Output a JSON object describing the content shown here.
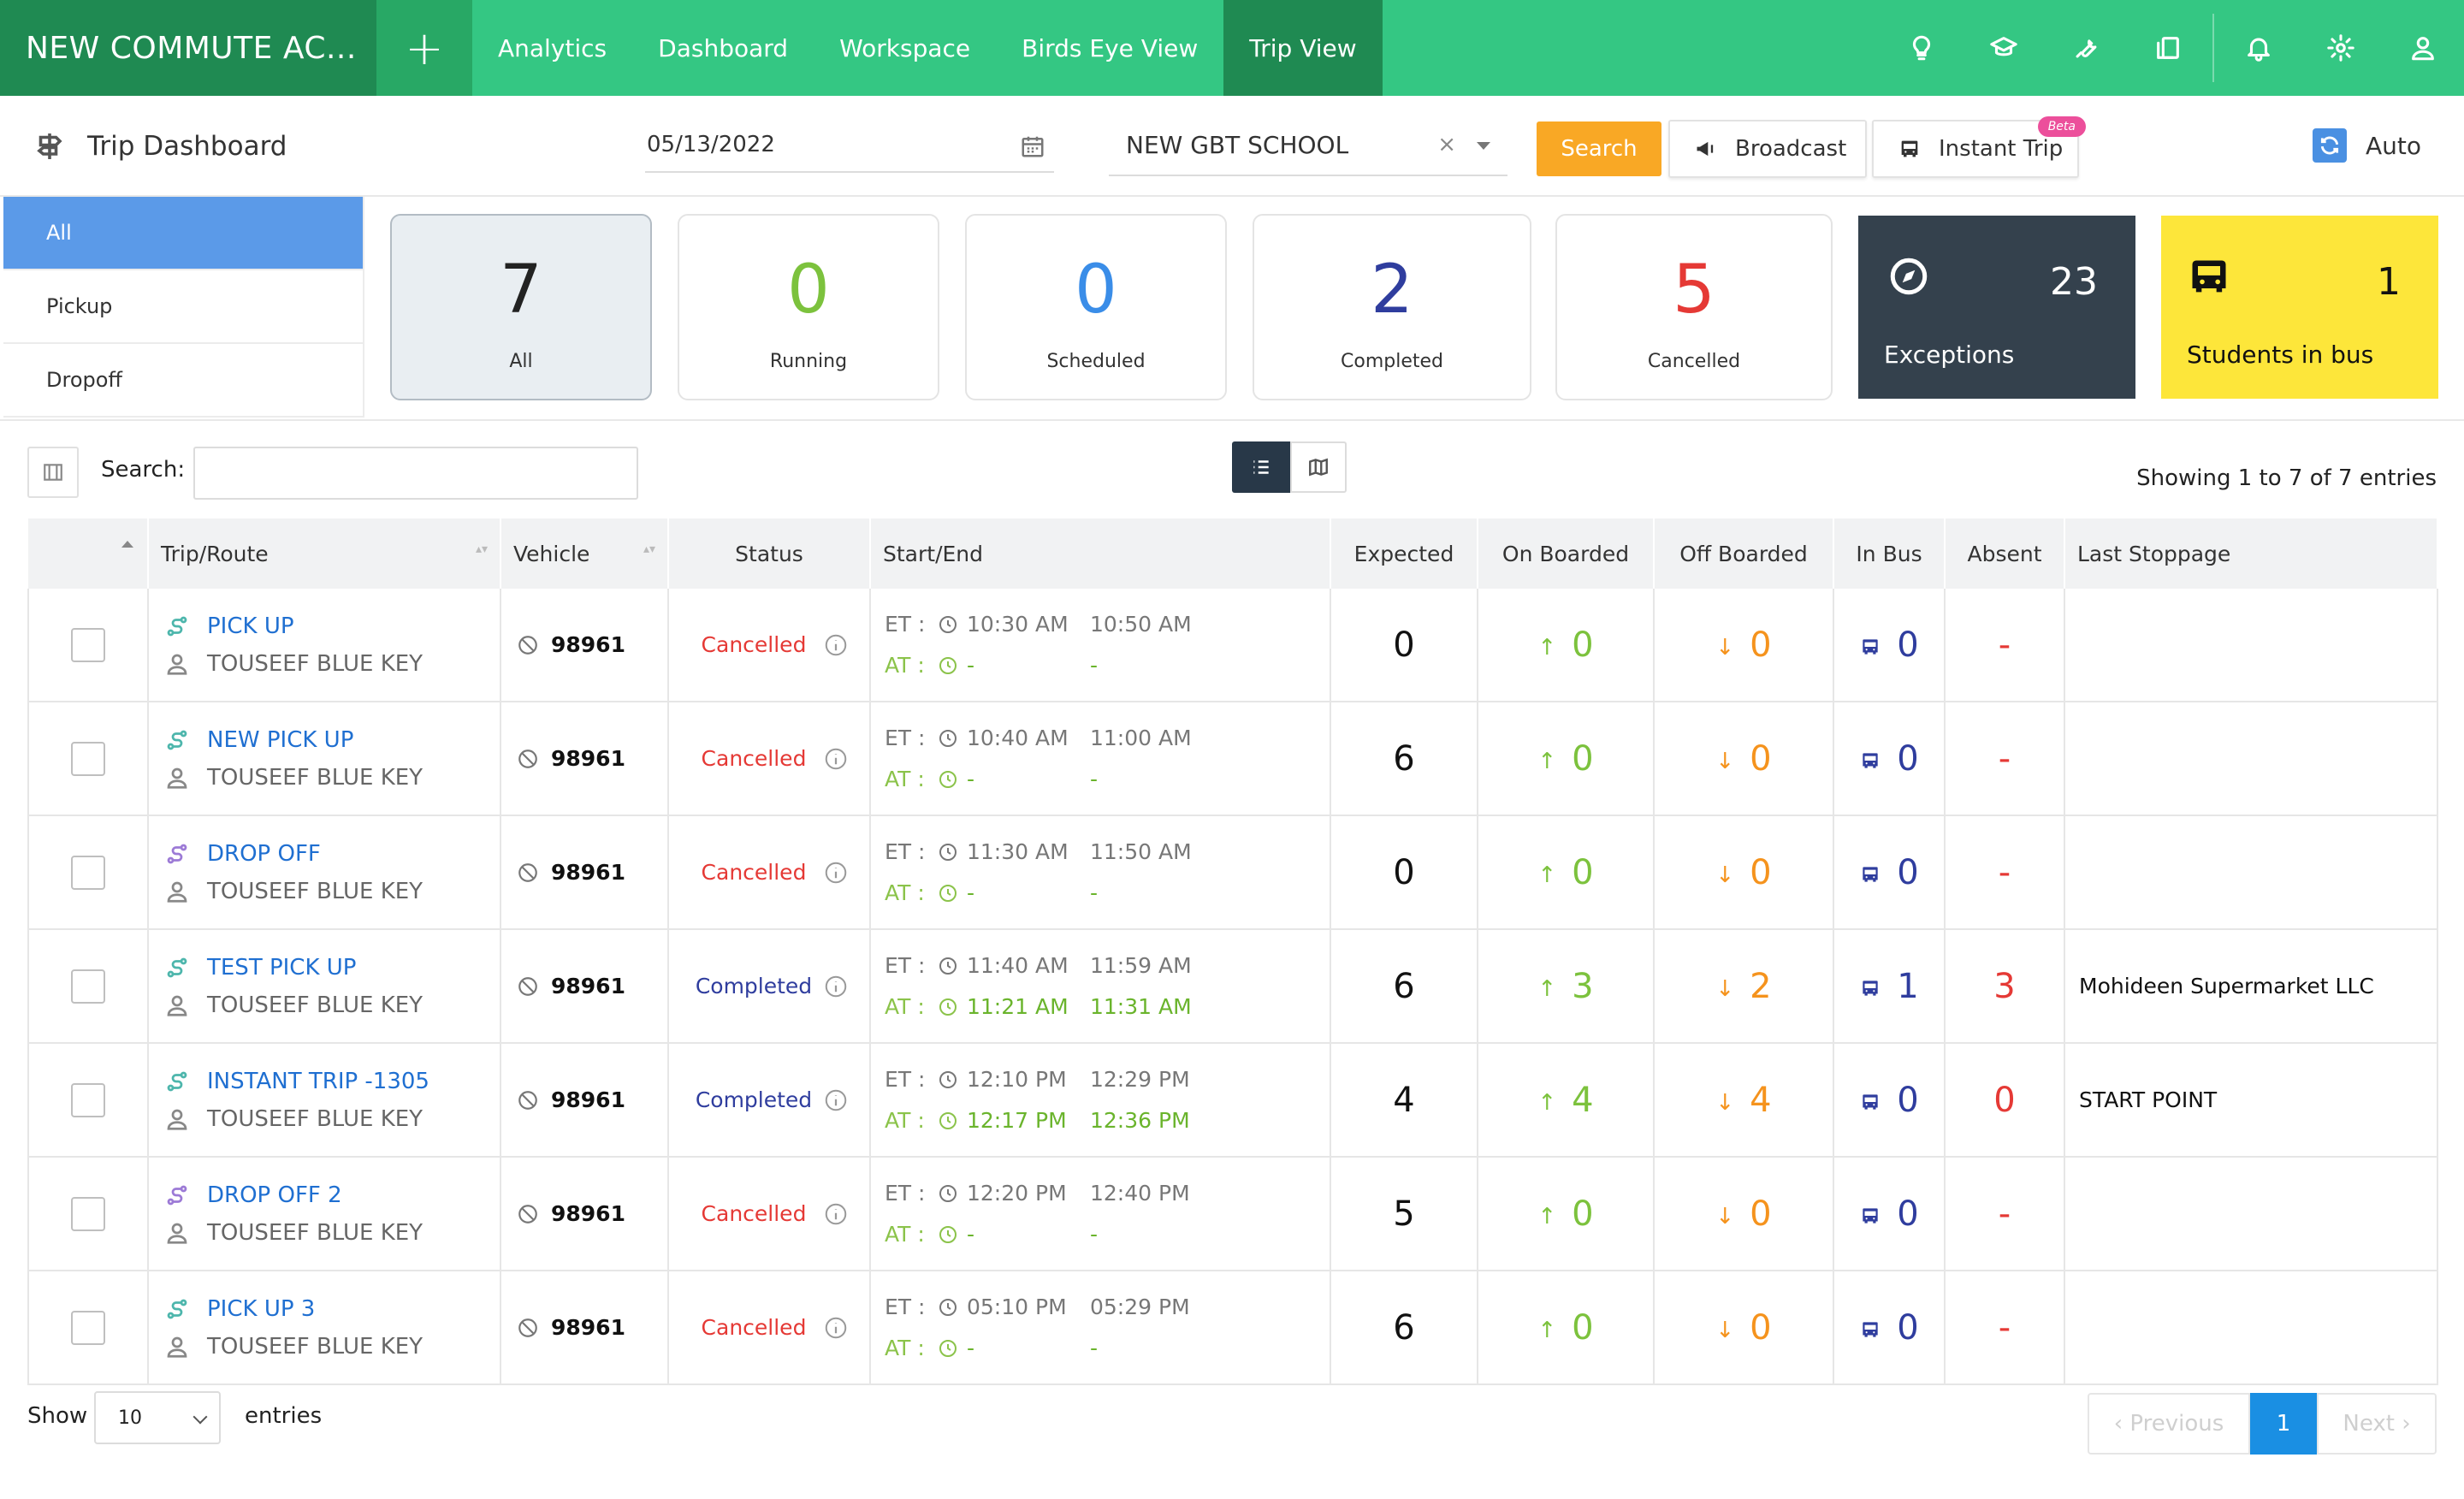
{
  "nav": {
    "brand": "NEW COMMUTE AC...",
    "add": "+",
    "tabs": [
      {
        "label": "Analytics"
      },
      {
        "label": "Dashboard"
      },
      {
        "label": "Workspace"
      },
      {
        "label": "Birds Eye View"
      },
      {
        "label": "Trip View",
        "active": true
      }
    ],
    "icons": [
      "lightbulb-icon",
      "graduation-cap-icon",
      "wrench-icon",
      "copy-icon",
      "bell-icon",
      "gear-icon",
      "user-icon"
    ]
  },
  "header": {
    "title": "Trip Dashboard",
    "date": "05/13/2022",
    "school": "NEW GBT SCHOOL",
    "clear": "×",
    "search_label": "Search",
    "broadcast_label": "Broadcast",
    "instant_trip_label": "Instant Trip",
    "beta_label": "Beta",
    "auto_label": "Auto"
  },
  "filters": [
    {
      "label": "All",
      "active": true
    },
    {
      "label": "Pickup"
    },
    {
      "label": "Dropoff"
    }
  ],
  "stats": [
    {
      "value": "7",
      "label": "All",
      "color": "#222222"
    },
    {
      "value": "0",
      "label": "Running",
      "color": "#7cc23d"
    },
    {
      "value": "0",
      "label": "Scheduled",
      "color": "#3a8de8"
    },
    {
      "value": "2",
      "label": "Completed",
      "color": "#2f3d9e"
    },
    {
      "value": "5",
      "label": "Cancelled",
      "color": "#e53935"
    }
  ],
  "exceptions": {
    "value": "23",
    "label": "Exceptions"
  },
  "students_in_bus": {
    "value": "1",
    "label": "Students in bus"
  },
  "table": {
    "search_label": "Search:",
    "showing": "Showing 1 to 7 of 7 entries",
    "columns": [
      "Trip/Route",
      "Vehicle",
      "Status",
      "Start/End",
      "Expected",
      "On Boarded",
      "Off Boarded",
      "In Bus",
      "Absent",
      "Last Stoppage"
    ],
    "et_label": "ET :",
    "at_label": "AT :",
    "rows": [
      {
        "trip": "PICK UP",
        "driver": "TOUSEEF BLUE KEY",
        "type": "pickup",
        "vehicle": "98961",
        "status": "Cancelled",
        "et_start": "10:30 AM",
        "et_end": "10:50 AM",
        "at_start": "-",
        "at_end": "-",
        "expected": "0",
        "on": "0",
        "off": "0",
        "in_bus": "0",
        "absent": "-",
        "last": ""
      },
      {
        "trip": "NEW PICK UP",
        "driver": "TOUSEEF BLUE KEY",
        "type": "pickup",
        "vehicle": "98961",
        "status": "Cancelled",
        "et_start": "10:40 AM",
        "et_end": "11:00 AM",
        "at_start": "-",
        "at_end": "-",
        "expected": "6",
        "on": "0",
        "off": "0",
        "in_bus": "0",
        "absent": "-",
        "last": ""
      },
      {
        "trip": "DROP OFF",
        "driver": "TOUSEEF BLUE KEY",
        "type": "dropoff",
        "vehicle": "98961",
        "status": "Cancelled",
        "et_start": "11:30 AM",
        "et_end": "11:50 AM",
        "at_start": "-",
        "at_end": "-",
        "expected": "0",
        "on": "0",
        "off": "0",
        "in_bus": "0",
        "absent": "-",
        "last": ""
      },
      {
        "trip": "TEST PICK UP",
        "driver": "TOUSEEF BLUE KEY",
        "type": "pickup",
        "vehicle": "98961",
        "status": "Completed",
        "et_start": "11:40 AM",
        "et_end": "11:59 AM",
        "at_start": "11:21 AM",
        "at_end": "11:31 AM",
        "expected": "6",
        "on": "3",
        "off": "2",
        "in_bus": "1",
        "absent": "3",
        "last": "Mohideen Supermarket LLC"
      },
      {
        "trip": "INSTANT TRIP -1305",
        "driver": "TOUSEEF BLUE KEY",
        "type": "pickup",
        "vehicle": "98961",
        "status": "Completed",
        "et_start": "12:10 PM",
        "et_end": "12:29 PM",
        "at_start": "12:17 PM",
        "at_end": "12:36 PM",
        "expected": "4",
        "on": "4",
        "off": "4",
        "in_bus": "0",
        "absent": "0",
        "last": "START POINT"
      },
      {
        "trip": "DROP OFF 2",
        "driver": "TOUSEEF BLUE KEY",
        "type": "dropoff",
        "vehicle": "98961",
        "status": "Cancelled",
        "et_start": "12:20 PM",
        "et_end": "12:40 PM",
        "at_start": "-",
        "at_end": "-",
        "expected": "5",
        "on": "0",
        "off": "0",
        "in_bus": "0",
        "absent": "-",
        "last": ""
      },
      {
        "trip": "PICK UP 3",
        "driver": "TOUSEEF BLUE KEY",
        "type": "pickup",
        "vehicle": "98961",
        "status": "Cancelled",
        "et_start": "05:10 PM",
        "et_end": "05:29 PM",
        "at_start": "-",
        "at_end": "-",
        "expected": "6",
        "on": "0",
        "off": "0",
        "in_bus": "0",
        "absent": "-",
        "last": ""
      }
    ]
  },
  "footer": {
    "show_label": "Show",
    "page_size": "10",
    "entries_label": "entries",
    "prev_label": "‹ Previous",
    "current_page": "1",
    "next_label": "Next ›"
  }
}
